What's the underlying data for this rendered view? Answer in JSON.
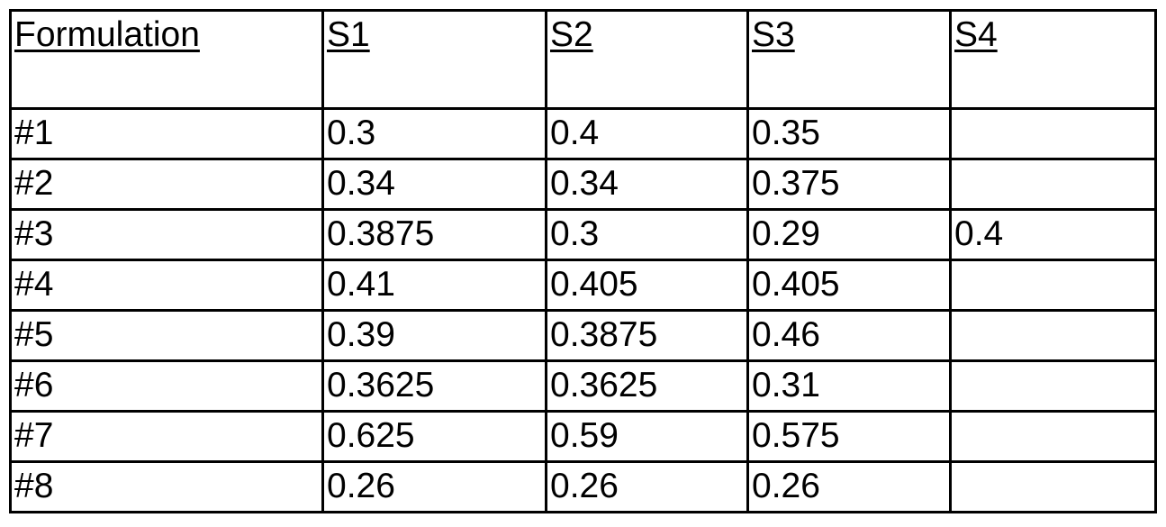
{
  "table": {
    "headers": [
      "Formulation",
      "S1",
      "S2",
      "S3",
      "S4"
    ],
    "rows": [
      [
        "#1",
        "0.3",
        "0.4",
        "0.35",
        ""
      ],
      [
        "#2",
        "0.34",
        "0.34",
        "0.375",
        ""
      ],
      [
        "#3",
        "0.3875",
        "0.3",
        "0.29",
        "0.4"
      ],
      [
        "#4",
        "0.41",
        "0.405",
        "0.405",
        ""
      ],
      [
        "#5",
        "0.39",
        "0.3875",
        "0.46",
        ""
      ],
      [
        "#6",
        "0.3625",
        "0.3625",
        "0.31",
        ""
      ],
      [
        "#7",
        "0.625",
        "0.59",
        "0.575",
        ""
      ],
      [
        "#8",
        "0.26",
        "0.26",
        "0.26",
        ""
      ]
    ]
  }
}
